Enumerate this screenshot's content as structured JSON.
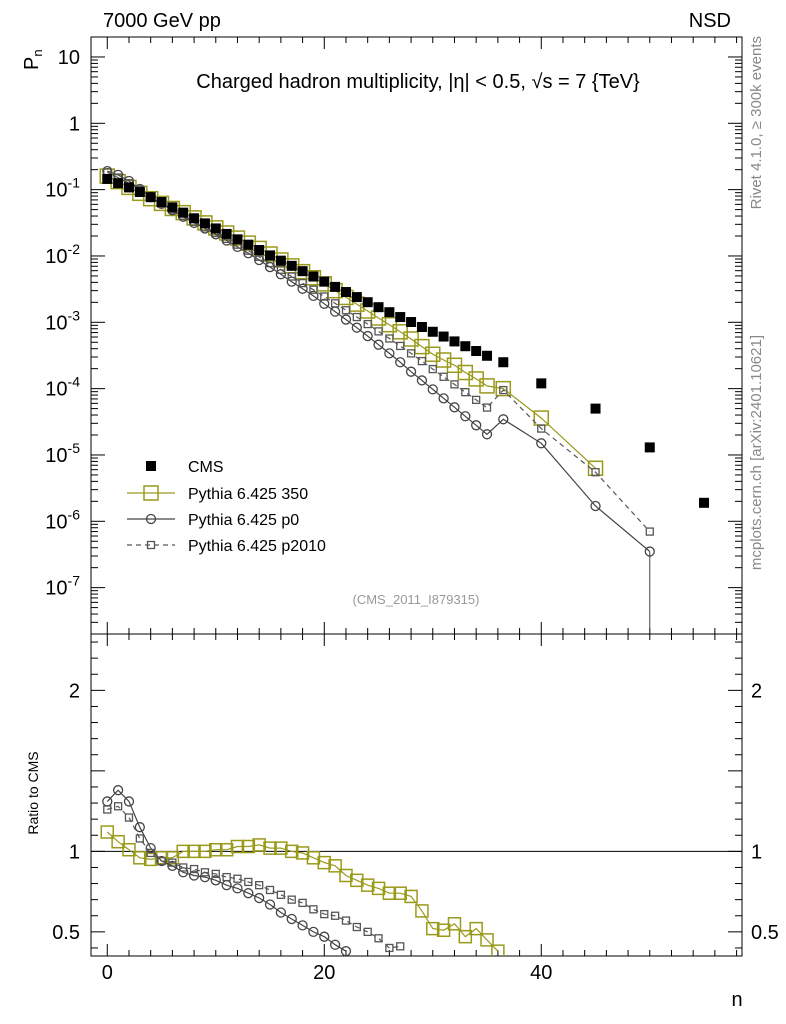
{
  "header": {
    "left": "7000 GeV pp",
    "right": "NSD",
    "plot_title": "Charged hadron multiplicity, |η| < 0.5, √s = 7 {TeV}",
    "analysis_id": "(CMS_2011_I879315)",
    "side_top": "Rivet 4.1.0, ≥ 300k events",
    "side_bottom": "mcplots.cern.ch [arXiv:2401.10621]"
  },
  "colors": {
    "cms": "#000000",
    "p350": "#9a9a1a",
    "p0": "#444444",
    "p2010": "#555555"
  },
  "chart_data": [
    {
      "type": "scatter",
      "title": "Charged hadron multiplicity, |η| < 0.5, √s = 7 {TeV}",
      "ylabel": "P_n",
      "xlabel": "",
      "xlim": [
        -1.5,
        58.5
      ],
      "ylim": [
        2e-08,
        20
      ],
      "yscale": "log",
      "yticks": [
        {
          "v": 10,
          "label": "10"
        },
        {
          "v": 1,
          "label": "1"
        },
        {
          "v": 0.1,
          "label": "10^-1"
        },
        {
          "v": 0.01,
          "label": "10^-2"
        },
        {
          "v": 0.001,
          "label": "10^-3"
        },
        {
          "v": 0.0001,
          "label": "10^-4"
        },
        {
          "v": 1e-05,
          "label": "10^-5"
        },
        {
          "v": 1e-06,
          "label": "10^-6"
        },
        {
          "v": 1e-07,
          "label": "10^-7"
        }
      ],
      "series": [
        {
          "name": "CMS",
          "style": "filled-square",
          "x": [
            0,
            1,
            2,
            3,
            4,
            5,
            6,
            7,
            8,
            9,
            10,
            11,
            12,
            13,
            14,
            15,
            16,
            17,
            18,
            19,
            20,
            21,
            22,
            23,
            24,
            25,
            26,
            27,
            28,
            29,
            30,
            31,
            32,
            33,
            34,
            35,
            36.5,
            40,
            45,
            50,
            55
          ],
          "y": [
            0.145,
            0.125,
            0.108,
            0.092,
            0.077,
            0.065,
            0.054,
            0.045,
            0.037,
            0.031,
            0.026,
            0.0215,
            0.0178,
            0.0148,
            0.0123,
            0.0102,
            0.0085,
            0.0071,
            0.0059,
            0.0049,
            0.0041,
            0.00342,
            0.00286,
            0.0024,
            0.00201,
            0.00169,
            0.00142,
            0.0012,
            0.00101,
            0.00085,
            0.00072,
            0.00061,
            0.000515,
            0.000436,
            0.000369,
            0.000313,
            0.00025,
            0.00012,
            5e-05,
            1.3e-05,
            1.9e-06
          ]
        },
        {
          "name": "Pythia 6.425 350",
          "style": "open-square-line",
          "x": [
            0,
            1,
            2,
            3,
            4,
            5,
            6,
            7,
            8,
            9,
            10,
            11,
            12,
            13,
            14,
            15,
            16,
            17,
            18,
            19,
            20,
            21,
            22,
            23,
            24,
            25,
            26,
            27,
            28,
            29,
            30,
            31,
            32,
            33,
            34,
            35,
            36.5,
            40,
            45
          ],
          "y": [
            0.16,
            0.132,
            0.108,
            0.088,
            0.073,
            0.062,
            0.052,
            0.045,
            0.0375,
            0.0315,
            0.0265,
            0.0222,
            0.0186,
            0.0156,
            0.013,
            0.0107,
            0.0087,
            0.0071,
            0.0058,
            0.0047,
            0.0038,
            0.003,
            0.00237,
            0.00188,
            0.00148,
            0.00116,
            0.00092,
            0.00072,
            0.00056,
            0.00043,
            0.00033,
            0.00027,
            0.000225,
            0.000175,
            0.00014,
            0.00011,
            0.0001,
            3.6e-05,
            6.3e-06
          ]
        },
        {
          "name": "Pythia 6.425 p0",
          "style": "open-circle-line",
          "x": [
            0,
            1,
            2,
            3,
            4,
            5,
            6,
            7,
            8,
            9,
            10,
            11,
            12,
            13,
            14,
            15,
            16,
            17,
            18,
            19,
            20,
            21,
            22,
            23,
            24,
            25,
            26,
            27,
            28,
            29,
            30,
            31,
            32,
            33,
            34,
            35,
            36.5,
            40,
            45,
            50
          ],
          "y": [
            0.19,
            0.167,
            0.135,
            0.102,
            0.077,
            0.061,
            0.049,
            0.039,
            0.0315,
            0.026,
            0.0212,
            0.0171,
            0.0137,
            0.011,
            0.0087,
            0.0068,
            0.0053,
            0.0041,
            0.0032,
            0.0025,
            0.0019,
            0.00145,
            0.0011,
            0.00083,
            0.00062,
            0.00046,
            0.00034,
            0.00025,
            0.00018,
            0.000133,
            9.75e-05,
            7.14e-05,
            5.23e-05,
            3.83e-05,
            2.8e-05,
            2.05e-05,
            3.45e-05,
            1.5e-05,
            1.7e-06,
            3.5e-07
          ]
        },
        {
          "name": "Pythia 6.425 p2010",
          "style": "open-square-dashed",
          "x": [
            0,
            1,
            2,
            3,
            4,
            5,
            6,
            7,
            8,
            9,
            10,
            11,
            12,
            13,
            14,
            15,
            16,
            17,
            18,
            19,
            20,
            21,
            22,
            23,
            24,
            25,
            26,
            27,
            28,
            29,
            30,
            31,
            32,
            33,
            34,
            35,
            36.5,
            40,
            45,
            50
          ],
          "y": [
            0.183,
            0.152,
            0.125,
            0.099,
            0.076,
            0.061,
            0.05,
            0.0405,
            0.0328,
            0.027,
            0.0222,
            0.0181,
            0.0148,
            0.012,
            0.0097,
            0.0078,
            0.0062,
            0.0049,
            0.0039,
            0.0031,
            0.00245,
            0.00193,
            0.00152,
            0.0012,
            0.00094,
            0.00073,
            0.00057,
            0.00044,
            0.00034,
            0.00026,
            0.000197,
            0.000151,
            0.000116,
            8.85e-05,
            6.77e-05,
            5.18e-05,
            9.5e-05,
            2.5e-05,
            5.5e-06,
            7e-07
          ]
        }
      ]
    },
    {
      "type": "scatter",
      "title": "",
      "xlabel": "n",
      "ylabel": "Ratio to CMS",
      "xlim": [
        -1.5,
        58.5
      ],
      "ylim": [
        0.35,
        2.35
      ],
      "xticks": [
        0,
        20,
        40
      ],
      "yticks": [
        0.5,
        1,
        2
      ],
      "reference_line": 1,
      "series": [
        {
          "name": "Pythia 6.425 350",
          "style": "open-square-line",
          "x": [
            0,
            1,
            2,
            3,
            4,
            5,
            6,
            7,
            8,
            9,
            10,
            11,
            12,
            13,
            14,
            15,
            16,
            17,
            18,
            19,
            20,
            21,
            22,
            23,
            24,
            25,
            26,
            27,
            28,
            29,
            30,
            31,
            32,
            33,
            34,
            35,
            36
          ],
          "y": [
            1.12,
            1.06,
            1.01,
            0.96,
            0.95,
            0.96,
            0.96,
            1.0,
            1.0,
            1.0,
            1.01,
            1.01,
            1.03,
            1.03,
            1.04,
            1.02,
            1.02,
            1.0,
            0.99,
            0.96,
            0.93,
            0.91,
            0.85,
            0.82,
            0.79,
            0.77,
            0.74,
            0.74,
            0.72,
            0.63,
            0.52,
            0.51,
            0.55,
            0.47,
            0.52,
            0.45,
            0.38
          ]
        },
        {
          "name": "Pythia 6.425 p0",
          "style": "open-circle-line",
          "x": [
            0,
            1,
            2,
            3,
            4,
            5,
            6,
            7,
            8,
            9,
            10,
            11,
            12,
            13,
            14,
            15,
            16,
            17,
            18,
            19,
            20,
            21,
            22
          ],
          "y": [
            1.31,
            1.38,
            1.31,
            1.15,
            1.02,
            0.94,
            0.91,
            0.87,
            0.85,
            0.84,
            0.82,
            0.79,
            0.77,
            0.74,
            0.71,
            0.67,
            0.62,
            0.58,
            0.54,
            0.5,
            0.47,
            0.42,
            0.38
          ]
        },
        {
          "name": "Pythia 6.425 p2010",
          "style": "open-square-dashed",
          "x": [
            0,
            1,
            2,
            3,
            4,
            5,
            6,
            7,
            8,
            9,
            10,
            11,
            12,
            13,
            14,
            15,
            16,
            17,
            18,
            19,
            20,
            21,
            22,
            23,
            24,
            25,
            26,
            27
          ],
          "y": [
            1.26,
            1.28,
            1.21,
            1.08,
            0.99,
            0.94,
            0.93,
            0.9,
            0.89,
            0.87,
            0.86,
            0.84,
            0.83,
            0.81,
            0.79,
            0.76,
            0.73,
            0.7,
            0.68,
            0.64,
            0.61,
            0.6,
            0.57,
            0.53,
            0.5,
            0.46,
            0.4,
            0.41
          ]
        }
      ]
    }
  ]
}
